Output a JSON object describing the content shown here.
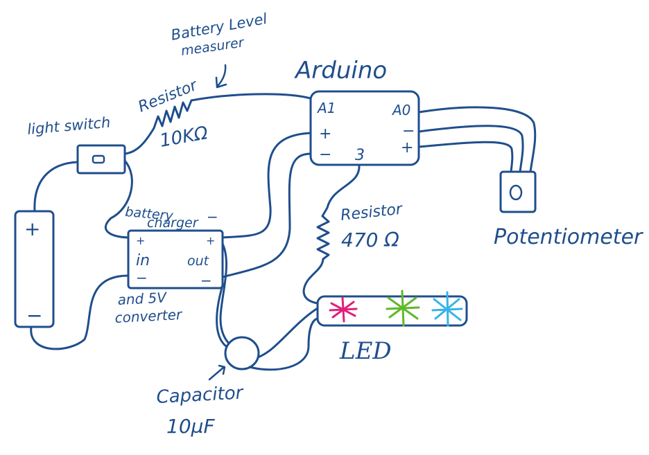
{
  "labels": {
    "battery_level_1": "Battery Level",
    "battery_level_2": "measurer",
    "arduino": "Arduino",
    "resistor_10k_1": "Resistor",
    "resistor_10k_2": "10KΩ",
    "light_switch": "light switch",
    "battery_charger_1": "battery",
    "battery_charger_2": "charger",
    "charger_in": "in",
    "charger_out": "out",
    "charger_note_1": "and 5V",
    "charger_note_2": "converter",
    "resistor_470_1": "Resistor",
    "resistor_470_2": "470 Ω",
    "potentiometer": "Potentiometer",
    "led": "LED",
    "capacitor_1": "Capacitor",
    "capacitor_2": "10µF",
    "pin_a1": "A1",
    "pin_a0": "A0",
    "pin_plus_left": "+",
    "pin_minus_left": "−",
    "pin_3": "3",
    "pin_minus_right": "−",
    "pin_plus_right": "+",
    "battery_plus": "+",
    "battery_minus": "−",
    "charger_plus_left": "+",
    "charger_minus_left": "−",
    "charger_plus_right": "+",
    "charger_minus_right": "−",
    "charger_dash_top": "−"
  },
  "colors": {
    "ink": "#1f4e8c",
    "led_pink": "#e0207a",
    "led_green": "#5fb82a",
    "led_blue": "#35b4e8"
  }
}
